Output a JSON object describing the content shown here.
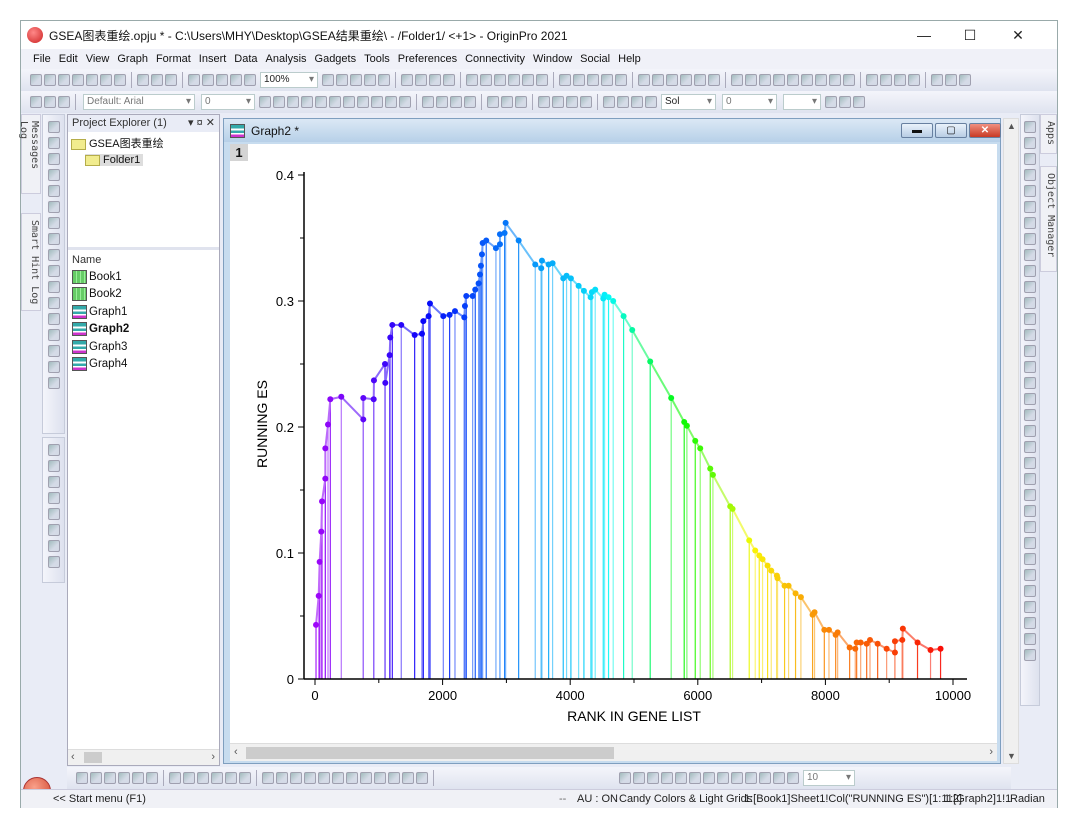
{
  "window": {
    "title": "GSEA图表重绘.opju * - C:\\Users\\MHY\\Desktop\\GSEA结果重绘\\ - /Folder1/ <+1> - OriginPro 2021",
    "minimize": "—",
    "maximize": "☐",
    "close": "✕"
  },
  "menu": [
    "File",
    "Edit",
    "View",
    "Graph",
    "Format",
    "Insert",
    "Data",
    "Analysis",
    "Gadgets",
    "Tools",
    "Preferences",
    "Connectivity",
    "Window",
    "Social",
    "Help"
  ],
  "toolbar": {
    "zoom": "100%",
    "font": "Default: Arial",
    "font_size": "0",
    "line_style": "Sol",
    "line_width": "0",
    "bottom_size": "10"
  },
  "side_tabs": {
    "messages": "Messages Log",
    "smart_hint": "Smart Hint Log",
    "apps": "Apps",
    "object_manager": "Object Manager"
  },
  "project_explorer": {
    "title": "Project Explorer (1)",
    "root": "GSEA图表重绘",
    "folder": "Folder1",
    "column_name": "Name",
    "items": [
      {
        "name": "Book1",
        "type": "book"
      },
      {
        "name": "Book2",
        "type": "book"
      },
      {
        "name": "Graph1",
        "type": "graph"
      },
      {
        "name": "Graph2",
        "type": "graph",
        "active": true
      },
      {
        "name": "Graph3",
        "type": "graph"
      },
      {
        "name": "Graph4",
        "type": "graph"
      }
    ]
  },
  "graph_window": {
    "title": "Graph2 *",
    "layer": "1"
  },
  "chart_data": {
    "type": "line",
    "xlabel": "RANK IN GENE LIST",
    "ylabel": "RUNNING ES",
    "xlim": [
      0,
      10000
    ],
    "ylim": [
      0,
      0.4
    ],
    "xticks": [
      0,
      2000,
      4000,
      6000,
      8000,
      10000
    ],
    "yticks": [
      0,
      0.1,
      0.2,
      0.3,
      0.4
    ],
    "ytick_labels": [
      "0",
      "0.1",
      "0.2",
      "0.3",
      "0.4"
    ],
    "grid": false,
    "legend": "none",
    "drop_lines": true,
    "color_map": "rainbow purple→red by rank",
    "x": [
      16,
      58,
      73,
      99,
      110,
      162,
      162,
      204,
      240,
      412,
      757,
      757,
      920,
      924,
      1097,
      1102,
      1170,
      1180,
      1212,
      1352,
      1562,
      1677,
      1698,
      1781,
      1802,
      2011,
      2110,
      2194,
      2340,
      2350,
      2371,
      2471,
      2512,
      2564,
      2586,
      2601,
      2617,
      2628,
      2684,
      2836,
      2899,
      2899,
      2972,
      2988,
      3192,
      3452,
      3546,
      3557,
      3662,
      3724,
      3891,
      3943,
      4011,
      4132,
      4215,
      4320,
      4340,
      4392,
      4518,
      4539,
      4601,
      4674,
      4837,
      4972,
      5254,
      5583,
      5787,
      5829,
      5960,
      6038,
      6195,
      6237,
      6508,
      6545,
      6806,
      6900,
      6963,
      7015,
      7094,
      7151,
      7240,
      7250,
      7360,
      7423,
      7532,
      7616,
      7799,
      7830,
      7983,
      8056,
      8161,
      8192,
      8380,
      8468,
      8490,
      8553,
      8647,
      8699,
      8819,
      8960,
      9090,
      9090,
      9205,
      9214,
      9444,
      9648,
      9805
    ],
    "y": [
      0.043,
      0.066,
      0.093,
      0.117,
      0.141,
      0.159,
      0.183,
      0.202,
      0.222,
      0.224,
      0.206,
      0.223,
      0.222,
      0.237,
      0.25,
      0.235,
      0.257,
      0.271,
      0.281,
      0.281,
      0.273,
      0.274,
      0.284,
      0.288,
      0.298,
      0.288,
      0.289,
      0.292,
      0.287,
      0.296,
      0.304,
      0.304,
      0.309,
      0.314,
      0.321,
      0.328,
      0.337,
      0.346,
      0.348,
      0.342,
      0.345,
      0.353,
      0.354,
      0.362,
      0.348,
      0.329,
      0.326,
      0.332,
      0.329,
      0.33,
      0.318,
      0.32,
      0.318,
      0.312,
      0.308,
      0.303,
      0.307,
      0.309,
      0.302,
      0.305,
      0.303,
      0.3,
      0.288,
      0.277,
      0.252,
      0.223,
      0.204,
      0.201,
      0.189,
      0.183,
      0.167,
      0.162,
      0.137,
      0.135,
      0.11,
      0.102,
      0.098,
      0.095,
      0.09,
      0.086,
      0.082,
      0.08,
      0.074,
      0.074,
      0.068,
      0.065,
      0.051,
      0.053,
      0.039,
      0.039,
      0.035,
      0.037,
      0.025,
      0.024,
      0.029,
      0.029,
      0.028,
      0.031,
      0.028,
      0.024,
      0.021,
      0.03,
      0.031,
      0.04,
      0.029,
      0.023,
      0.024
    ]
  },
  "start_menu": "<< Start menu (F1)",
  "status": {
    "dash": "--",
    "au": "AU : ON",
    "theme": "Candy Colors & Light Grids",
    "column": "1:[Book1]Sheet1!Col(\"RUNNING ES\")[1:112]",
    "layer": "1:[Graph2]1!1",
    "angle": "Radian"
  }
}
